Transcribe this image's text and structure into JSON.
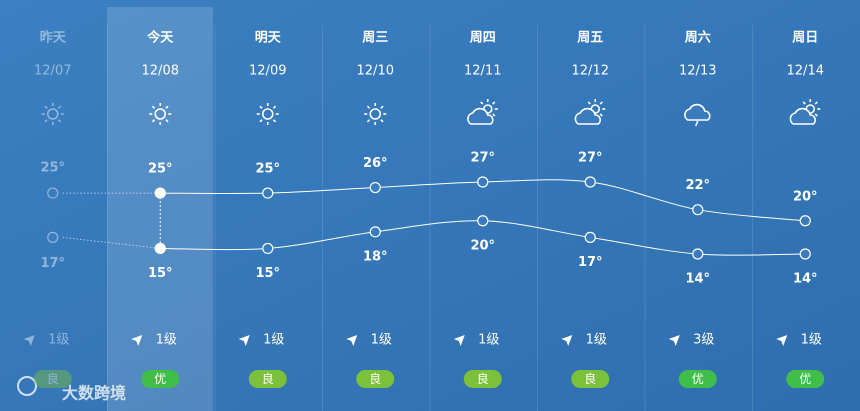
{
  "chart_data": {
    "type": "line",
    "categories": [
      "昨天",
      "今天",
      "明天",
      "周三",
      "周四",
      "周五",
      "周六",
      "周日"
    ],
    "dates": [
      "12/07",
      "12/08",
      "12/09",
      "12/10",
      "12/11",
      "12/12",
      "12/13",
      "12/14"
    ],
    "series": [
      {
        "name": "high",
        "color": "#ffffff",
        "values": [
          25,
          25,
          25,
          26,
          27,
          27,
          22,
          20
        ],
        "value_labels": [
          "25°",
          "25°",
          "25°",
          "26°",
          "27°",
          "27°",
          "22°",
          "20°"
        ]
      },
      {
        "name": "low",
        "color": "#ffffff",
        "values": [
          17,
          15,
          15,
          18,
          20,
          17,
          14,
          14
        ],
        "value_labels": [
          "17°",
          "15°",
          "15°",
          "18°",
          "20°",
          "17°",
          "14°",
          "14°"
        ]
      }
    ],
    "wind": [
      "1级",
      "1级",
      "1级",
      "1级",
      "1级",
      "1级",
      "3级",
      "1级"
    ],
    "aqi": [
      "良",
      "优",
      "良",
      "良",
      "良",
      "良",
      "优",
      "优"
    ]
  },
  "watermark": "大数跨境"
}
